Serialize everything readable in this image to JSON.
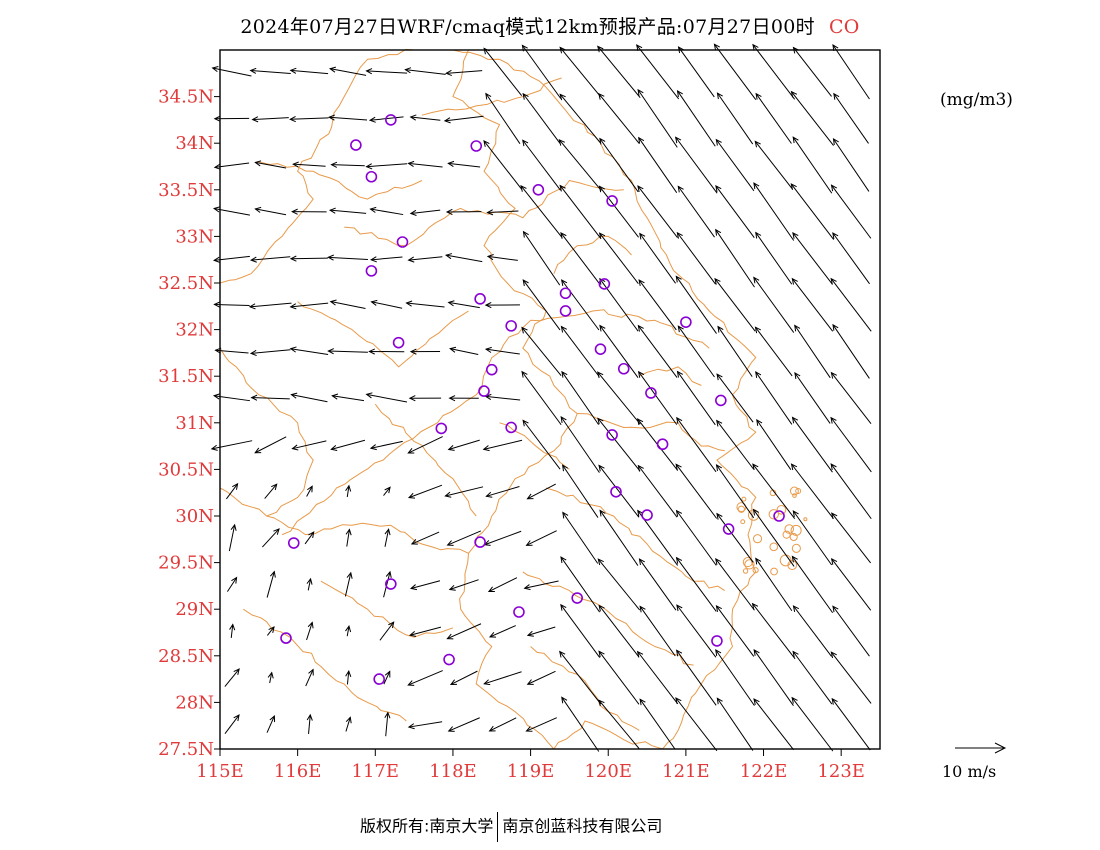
{
  "title": {
    "text": "2024年07月27日WRF/cmaq模式12km预报产品:07月27日00时",
    "species": "CO",
    "species_color": "#e03a3a"
  },
  "unit_label": "(mg/m3)",
  "vector_reference": {
    "label": "10 m/s",
    "speed_ms": 10
  },
  "copyright": {
    "left": "版权所有:南京大学",
    "right": "南京创蓝科技有限公司"
  },
  "map_extent": {
    "lon_min": 115.0,
    "lon_max": 123.5,
    "lat_min": 27.5,
    "lat_max": 35.0
  },
  "axes": {
    "label_color": "#e03a3a",
    "boundary_color": "#e89a4a",
    "x_ticks": [
      "115E",
      "116E",
      "117E",
      "118E",
      "119E",
      "120E",
      "121E",
      "122E",
      "123E"
    ],
    "y_ticks": [
      "27.5N",
      "28N",
      "28.5N",
      "29N",
      "29.5N",
      "30N",
      "30.5N",
      "31N",
      "31.5N",
      "32N",
      "32.5N",
      "33N",
      "33.5N",
      "34N",
      "34.5N"
    ]
  },
  "stations": {
    "color": "#8a00d4",
    "points": [
      [
        117.2,
        34.25
      ],
      [
        116.75,
        33.98
      ],
      [
        116.95,
        33.64
      ],
      [
        118.3,
        33.97
      ],
      [
        119.1,
        33.5
      ],
      [
        120.05,
        33.38
      ],
      [
        117.35,
        32.94
      ],
      [
        116.95,
        32.63
      ],
      [
        118.35,
        32.33
      ],
      [
        118.75,
        32.04
      ],
      [
        119.45,
        32.39
      ],
      [
        119.45,
        32.2
      ],
      [
        119.95,
        32.49
      ],
      [
        117.3,
        31.86
      ],
      [
        119.9,
        31.79
      ],
      [
        120.2,
        31.58
      ],
      [
        121.0,
        32.08
      ],
      [
        118.5,
        31.57
      ],
      [
        118.4,
        31.34
      ],
      [
        120.55,
        31.32
      ],
      [
        121.45,
        31.24
      ],
      [
        117.85,
        30.94
      ],
      [
        118.75,
        30.95
      ],
      [
        120.05,
        30.87
      ],
      [
        120.7,
        30.77
      ],
      [
        120.1,
        30.26
      ],
      [
        120.5,
        30.01
      ],
      [
        121.55,
        29.86
      ],
      [
        122.2,
        30.0
      ],
      [
        115.95,
        29.71
      ],
      [
        118.35,
        29.72
      ],
      [
        117.2,
        29.27
      ],
      [
        119.6,
        29.12
      ],
      [
        118.85,
        28.97
      ],
      [
        121.4,
        28.66
      ],
      [
        115.85,
        28.69
      ],
      [
        117.95,
        28.46
      ],
      [
        117.05,
        28.25
      ]
    ]
  }
}
